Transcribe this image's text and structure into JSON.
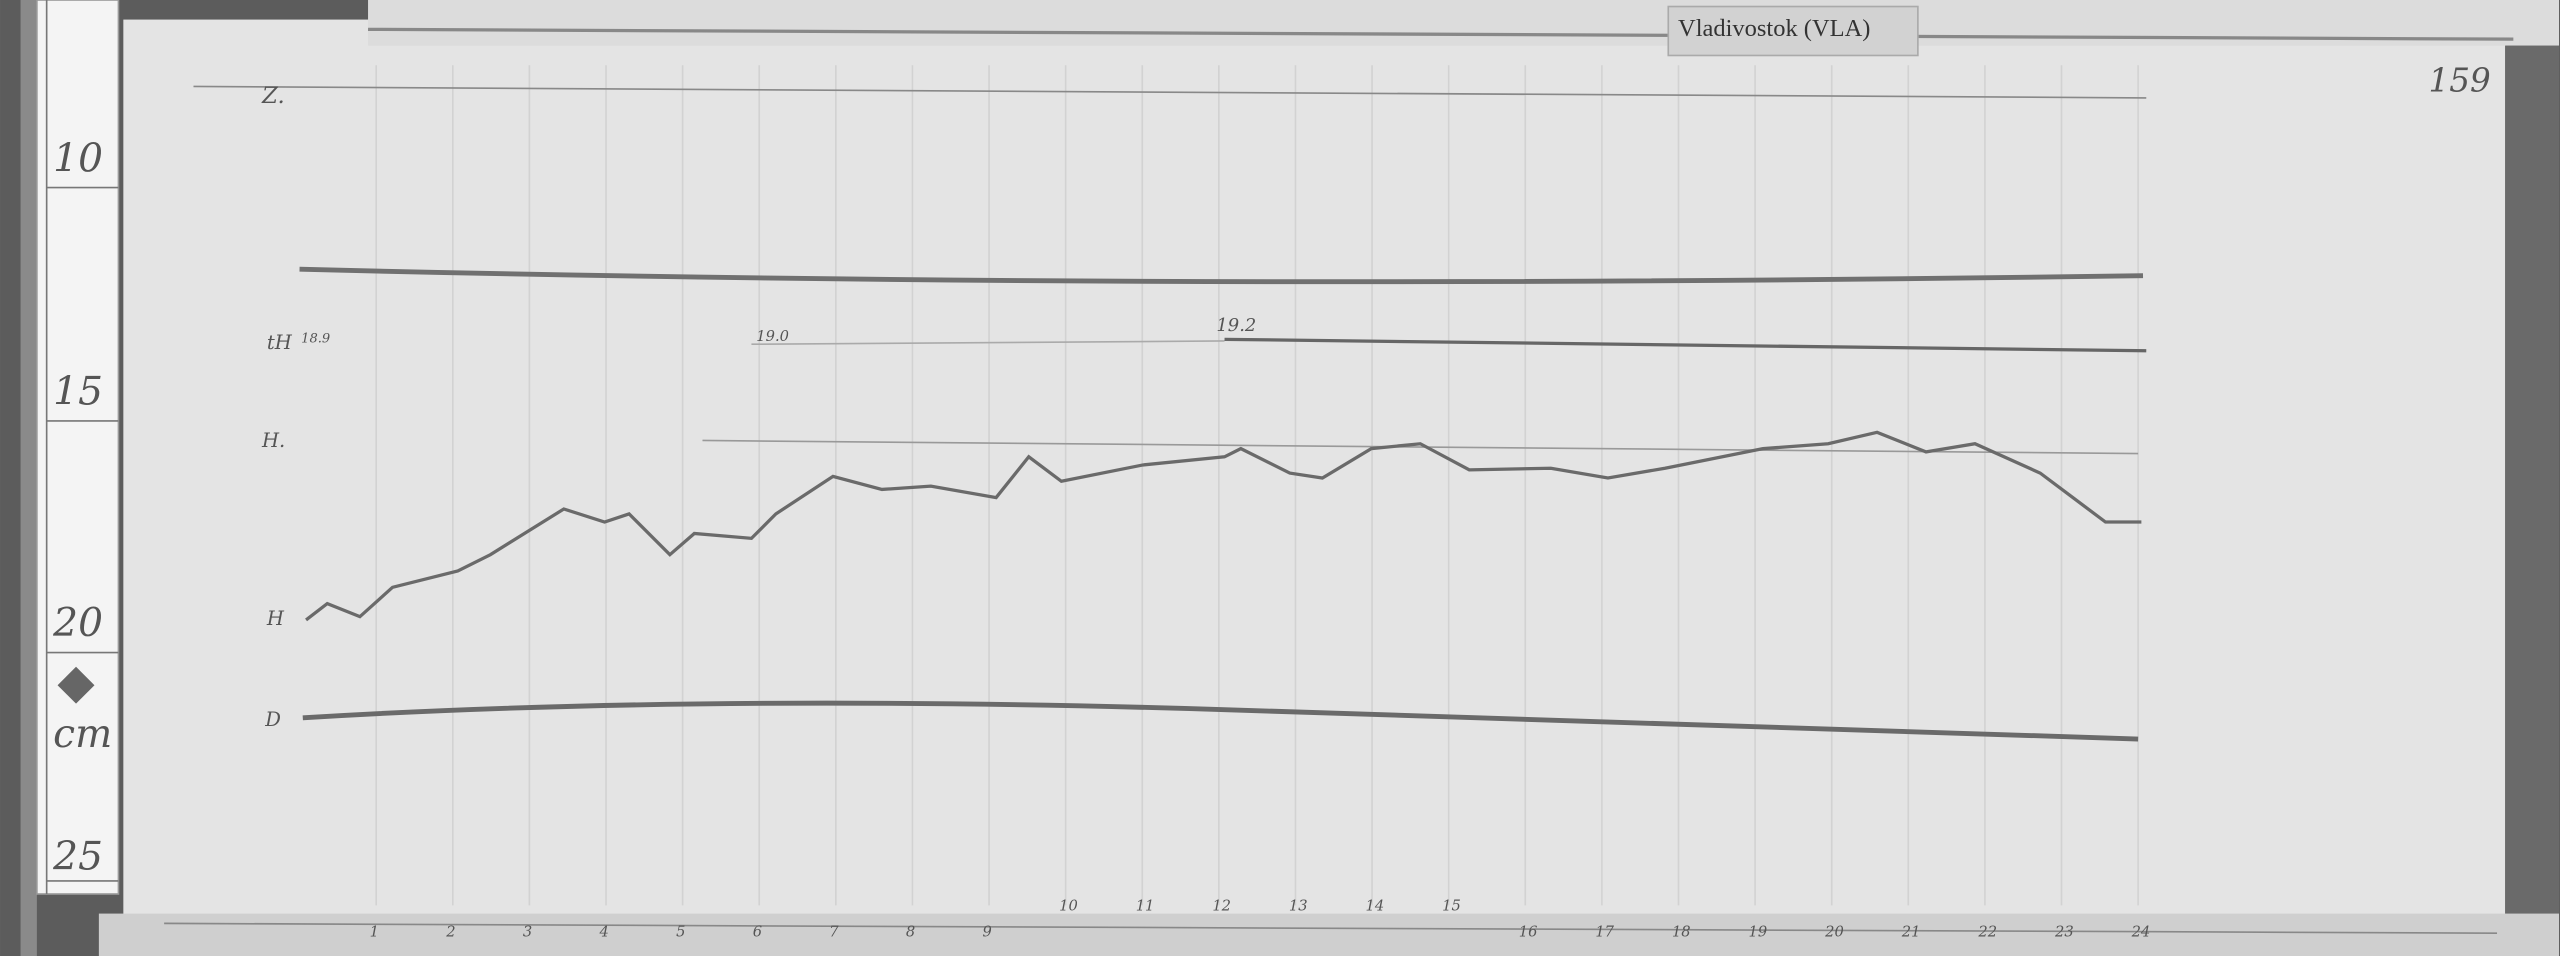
{
  "header": {
    "station": "Vladivostok (VLA)",
    "page_number": "159"
  },
  "ruler": {
    "labels": [
      "10",
      "15",
      "20",
      "cm",
      "25"
    ]
  },
  "traces": {
    "labels": [
      "Z.",
      "tH",
      "18.9",
      "19.0",
      "19.2",
      "H.",
      "H",
      "D"
    ]
  },
  "hours": [
    "1",
    "2",
    "3",
    "4",
    "5",
    "6",
    "7",
    "8",
    "9",
    "10",
    "11",
    "12",
    "13",
    "14",
    "15",
    "16",
    "17",
    "18",
    "19",
    "20",
    "21",
    "22",
    "23",
    "24"
  ]
}
